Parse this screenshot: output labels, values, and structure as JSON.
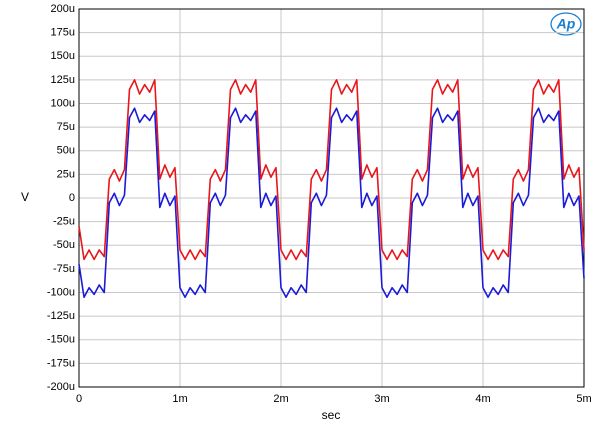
{
  "chart_data": {
    "type": "line",
    "logo": "Ap",
    "xlabel": "sec",
    "ylabel": "V",
    "x": [
      0,
      5e-05,
      0.0001,
      0.00015,
      0.0002,
      0.00025,
      0.0003,
      0.00035,
      0.0004,
      0.00045,
      0.0005,
      0.00055,
      0.0006,
      0.00065,
      0.0007,
      0.00075,
      0.0008,
      0.00085,
      0.0009,
      0.00095,
      0.001,
      0.00105,
      0.0011,
      0.00115,
      0.0012,
      0.00125,
      0.0013,
      0.00135,
      0.0014,
      0.00145,
      0.0015,
      0.00155,
      0.0016,
      0.00165,
      0.0017,
      0.00175,
      0.0018,
      0.00185,
      0.0019,
      0.00195,
      0.002,
      0.00205,
      0.0021,
      0.00215,
      0.0022,
      0.00225,
      0.0023,
      0.00235,
      0.0024,
      0.00245,
      0.0025,
      0.00255,
      0.0026,
      0.00265,
      0.0027,
      0.00275,
      0.0028,
      0.00285,
      0.0029,
      0.00295,
      0.003,
      0.00305,
      0.0031,
      0.00315,
      0.0032,
      0.00325,
      0.0033,
      0.00335,
      0.0034,
      0.00345,
      0.0035,
      0.00355,
      0.0036,
      0.00365,
      0.0037,
      0.00375,
      0.0038,
      0.00385,
      0.0039,
      0.00395,
      0.004,
      0.00405,
      0.0041,
      0.00415,
      0.0042,
      0.00425,
      0.0043,
      0.00435,
      0.0044,
      0.00445,
      0.0045,
      0.00455,
      0.0046,
      0.00465,
      0.0047,
      0.00475,
      0.0048,
      0.00485,
      0.0049,
      0.00495,
      0.005
    ],
    "series": [
      {
        "color": "#e8161b",
        "values": [
          -3e-05,
          -6.5e-05,
          -5.5e-05,
          -6.5e-05,
          -5.5e-05,
          -6.2e-05,
          2e-05,
          3e-05,
          1.8e-05,
          3e-05,
          0.000115,
          0.000125,
          0.00011,
          0.00012,
          0.000112,
          0.000125,
          2e-05,
          3.5e-05,
          2.2e-05,
          3.2e-05,
          -5.5e-05,
          -6.5e-05,
          -5.5e-05,
          -6.5e-05,
          -5.5e-05,
          -6.2e-05,
          2e-05,
          3e-05,
          1.8e-05,
          3e-05,
          0.000115,
          0.000125,
          0.00011,
          0.00012,
          0.000112,
          0.000125,
          2e-05,
          3.5e-05,
          2.2e-05,
          3.2e-05,
          -5.5e-05,
          -6.5e-05,
          -5.5e-05,
          -6.5e-05,
          -5.5e-05,
          -6.2e-05,
          2e-05,
          3e-05,
          1.8e-05,
          3e-05,
          0.000115,
          0.000125,
          0.00011,
          0.00012,
          0.000112,
          0.000125,
          2e-05,
          3.5e-05,
          2.2e-05,
          3.2e-05,
          -5.5e-05,
          -6.5e-05,
          -5.5e-05,
          -6.5e-05,
          -5.5e-05,
          -6.2e-05,
          2e-05,
          3e-05,
          1.8e-05,
          3e-05,
          0.000115,
          0.000125,
          0.00011,
          0.00012,
          0.000112,
          0.000125,
          2e-05,
          3.5e-05,
          2.2e-05,
          3.2e-05,
          -5.5e-05,
          -6.5e-05,
          -5.5e-05,
          -6.5e-05,
          -5.5e-05,
          -6.2e-05,
          2e-05,
          3e-05,
          1.8e-05,
          3e-05,
          0.000115,
          0.000125,
          0.00011,
          0.00012,
          0.000112,
          0.000125,
          2e-05,
          3.5e-05,
          2.2e-05,
          3.2e-05,
          -5.5e-05
        ]
      },
      {
        "color": "#1a1ad8",
        "values": [
          -7e-05,
          -0.000105,
          -9.5e-05,
          -0.000102,
          -9.2e-05,
          -0.0001,
          -5e-06,
          5e-06,
          -8e-06,
          3e-06,
          8.5e-05,
          9.5e-05,
          8e-05,
          8.8e-05,
          8.2e-05,
          9.2e-05,
          -1e-05,
          5e-06,
          -8e-06,
          2e-06,
          -9.5e-05,
          -0.000105,
          -9.5e-05,
          -0.000102,
          -9.2e-05,
          -0.0001,
          -5e-06,
          5e-06,
          -8e-06,
          3e-06,
          8.5e-05,
          9.5e-05,
          8e-05,
          8.8e-05,
          8.2e-05,
          9.2e-05,
          -1e-05,
          5e-06,
          -8e-06,
          2e-06,
          -9.5e-05,
          -0.000105,
          -9.5e-05,
          -0.000102,
          -9.2e-05,
          -0.0001,
          -5e-06,
          5e-06,
          -8e-06,
          3e-06,
          8.5e-05,
          9.5e-05,
          8e-05,
          8.8e-05,
          8.2e-05,
          9.2e-05,
          -1e-05,
          5e-06,
          -8e-06,
          2e-06,
          -9.5e-05,
          -0.000105,
          -9.5e-05,
          -0.000102,
          -9.2e-05,
          -0.0001,
          -5e-06,
          5e-06,
          -8e-06,
          3e-06,
          8.5e-05,
          9.5e-05,
          8e-05,
          8.8e-05,
          8.2e-05,
          9.2e-05,
          -1e-05,
          5e-06,
          -8e-06,
          2e-06,
          -9.5e-05,
          -0.000105,
          -9.5e-05,
          -0.000102,
          -9.2e-05,
          -0.0001,
          -5e-06,
          5e-06,
          -8e-06,
          3e-06,
          8.5e-05,
          9.5e-05,
          8e-05,
          8.8e-05,
          8.2e-05,
          9.2e-05,
          -1e-05,
          5e-06,
          -8e-06,
          2e-06,
          -8.5e-05
        ]
      }
    ],
    "xlim": [
      0,
      0.005
    ],
    "xticks": [
      0,
      {
        "value": 0.001,
        "label": "1m"
      },
      {
        "value": 0.002,
        "label": "2m"
      },
      {
        "value": 0.003,
        "label": "3m"
      },
      {
        "value": 0.004,
        "label": "4m"
      },
      {
        "value": 0.005,
        "label": "5m"
      }
    ],
    "ylim": [
      -0.0002,
      0.0002
    ],
    "yticks": [
      {
        "value": -0.0002,
        "label": "-200u"
      },
      {
        "value": -0.000175,
        "label": "-175u"
      },
      {
        "value": -0.00015,
        "label": "-150u"
      },
      {
        "value": -0.000125,
        "label": "-125u"
      },
      {
        "value": -0.0001,
        "label": "-100u"
      },
      {
        "value": -7.5e-05,
        "label": "-75u"
      },
      {
        "value": -5e-05,
        "label": "-50u"
      },
      {
        "value": -2.5e-05,
        "label": "-25u"
      },
      0,
      {
        "value": 2.5e-05,
        "label": "25u"
      },
      {
        "value": 5e-05,
        "label": "50u"
      },
      {
        "value": 7.5e-05,
        "label": "75u"
      },
      {
        "value": 0.0001,
        "label": "100u"
      },
      {
        "value": 0.000125,
        "label": "125u"
      },
      {
        "value": 0.00015,
        "label": "150u"
      },
      {
        "value": 0.000175,
        "label": "175u"
      },
      {
        "value": 0.0002,
        "label": "200u"
      }
    ],
    "grid": true
  }
}
